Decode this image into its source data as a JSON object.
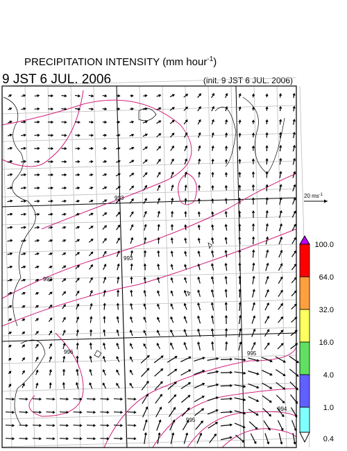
{
  "title": {
    "text": "PRECIPITATION INTENSITY (mm hour",
    "superscript": "-1",
    "close": ")"
  },
  "valid_time": "9 JST 6 JUL. 2006",
  "init_time": "(init. 9 JST 6 JUL. 2006)",
  "vector_scale": {
    "text": "20 ms",
    "superscript": "-1"
  },
  "contour_labels": [
    "993",
    "993",
    "993",
    "995",
    "996",
    "995",
    "994"
  ],
  "colorbar": {
    "ticks": [
      {
        "value": 100,
        "label": "100.0"
      },
      {
        "value": 64,
        "label": "64.0"
      },
      {
        "value": 32,
        "label": "32.0"
      },
      {
        "value": 16,
        "label": "16.0"
      },
      {
        "value": 4,
        "label": "4.0"
      },
      {
        "value": 1,
        "label": "1.0"
      },
      {
        "value": 0.4,
        "label": "0.4"
      }
    ],
    "colors": [
      "#ff0000",
      "#ffa040",
      "#ffff60",
      "#60e060",
      "#6060ff",
      "#80ffff"
    ],
    "over_color": "#c000ff",
    "under_color": "#ffffff"
  }
}
